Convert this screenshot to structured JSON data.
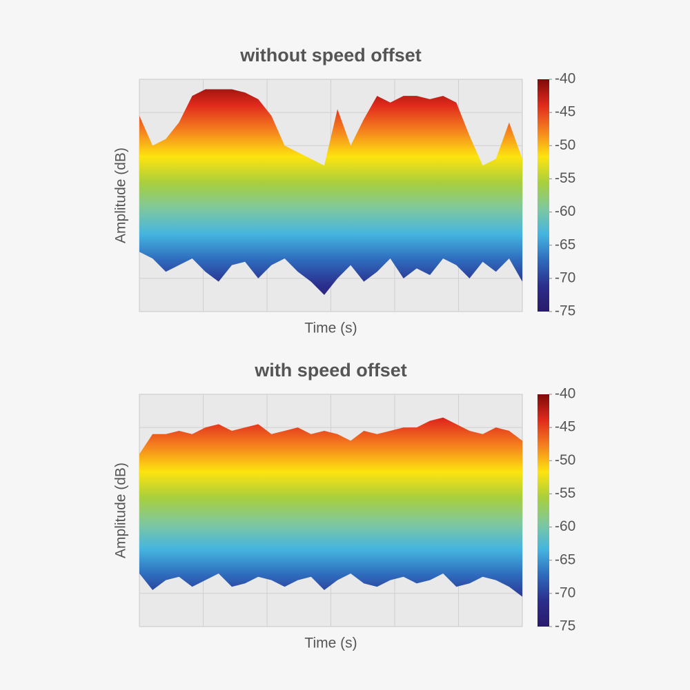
{
  "chart_data": [
    {
      "type": "area",
      "title": "without speed offset",
      "xlabel": "Time (s)",
      "ylabel": "Amplitude (dB)",
      "ylim": [
        -75,
        -40
      ],
      "ygrid": [
        -70,
        -65,
        -60,
        -55,
        -50,
        -45
      ],
      "xgrid_divisions": 6,
      "series": [
        {
          "values": [
            -45.5,
            -50,
            -49,
            -46.5,
            -42.5,
            -41.5,
            -41.5,
            -41.5,
            -42,
            -43,
            -45.5,
            -50,
            -51,
            -52,
            -53,
            -44.5,
            -50,
            -46,
            -42.5,
            -43.5,
            -42.5,
            -42.5,
            -43,
            -42.5,
            -43.5,
            -48.5,
            -53,
            -52,
            -46.5,
            -52
          ]
        },
        {
          "values": [
            -66,
            -67,
            -69,
            -68,
            -67,
            -69,
            -70.5,
            -68,
            -67.5,
            -70,
            -68,
            -67,
            -69,
            -70.5,
            -72.5,
            -70,
            -68,
            -70.5,
            -69,
            -67,
            -70,
            -68.5,
            -69.5,
            -67,
            -68,
            -70,
            -67.5,
            -69,
            -67,
            -70.5
          ]
        }
      ],
      "colorbar": {
        "clim": [
          -75,
          -40
        ],
        "ticks": [
          -40,
          -45,
          -50,
          -55,
          -60,
          -65,
          -70,
          -75
        ],
        "colormap": [
          "#7f0a0a",
          "#e02a1c",
          "#f5821f",
          "#fde40f",
          "#a9cf3c",
          "#7fc89d",
          "#45b5e0",
          "#2e6bbd",
          "#2b2e8c",
          "#2a1a6b"
        ]
      }
    },
    {
      "type": "area",
      "title": "with speed offset",
      "xlabel": "Time (s)",
      "ylabel": "Amplitude (dB)",
      "ylim": [
        -75,
        -40
      ],
      "ygrid": [
        -70,
        -65,
        -60,
        -55,
        -50,
        -45
      ],
      "xgrid_divisions": 6,
      "series": [
        {
          "values": [
            -49,
            -46,
            -46,
            -45.5,
            -46,
            -45,
            -44.5,
            -45.5,
            -45,
            -44.5,
            -46,
            -45.5,
            -45,
            -46,
            -45.5,
            -46,
            -47,
            -45.5,
            -46,
            -45.5,
            -45,
            -45,
            -44,
            -43.5,
            -44.5,
            -45.5,
            -46,
            -45,
            -45.5,
            -47
          ]
        },
        {
          "values": [
            -67,
            -69.5,
            -68,
            -67.5,
            -69,
            -68,
            -67,
            -69,
            -68.5,
            -67.5,
            -68,
            -69,
            -68,
            -67.5,
            -69.5,
            -68,
            -67,
            -68.5,
            -69,
            -68,
            -67.5,
            -68.5,
            -68,
            -67,
            -69,
            -68.5,
            -67.5,
            -68,
            -69,
            -70.5
          ]
        }
      ],
      "colorbar": {
        "clim": [
          -75,
          -40
        ],
        "ticks": [
          -40,
          -45,
          -50,
          -55,
          -60,
          -65,
          -70,
          -75
        ],
        "colormap": [
          "#7f0a0a",
          "#e02a1c",
          "#f5821f",
          "#fde40f",
          "#a9cf3c",
          "#7fc89d",
          "#45b5e0",
          "#2e6bbd",
          "#2b2e8c",
          "#2a1a6b"
        ]
      }
    }
  ]
}
